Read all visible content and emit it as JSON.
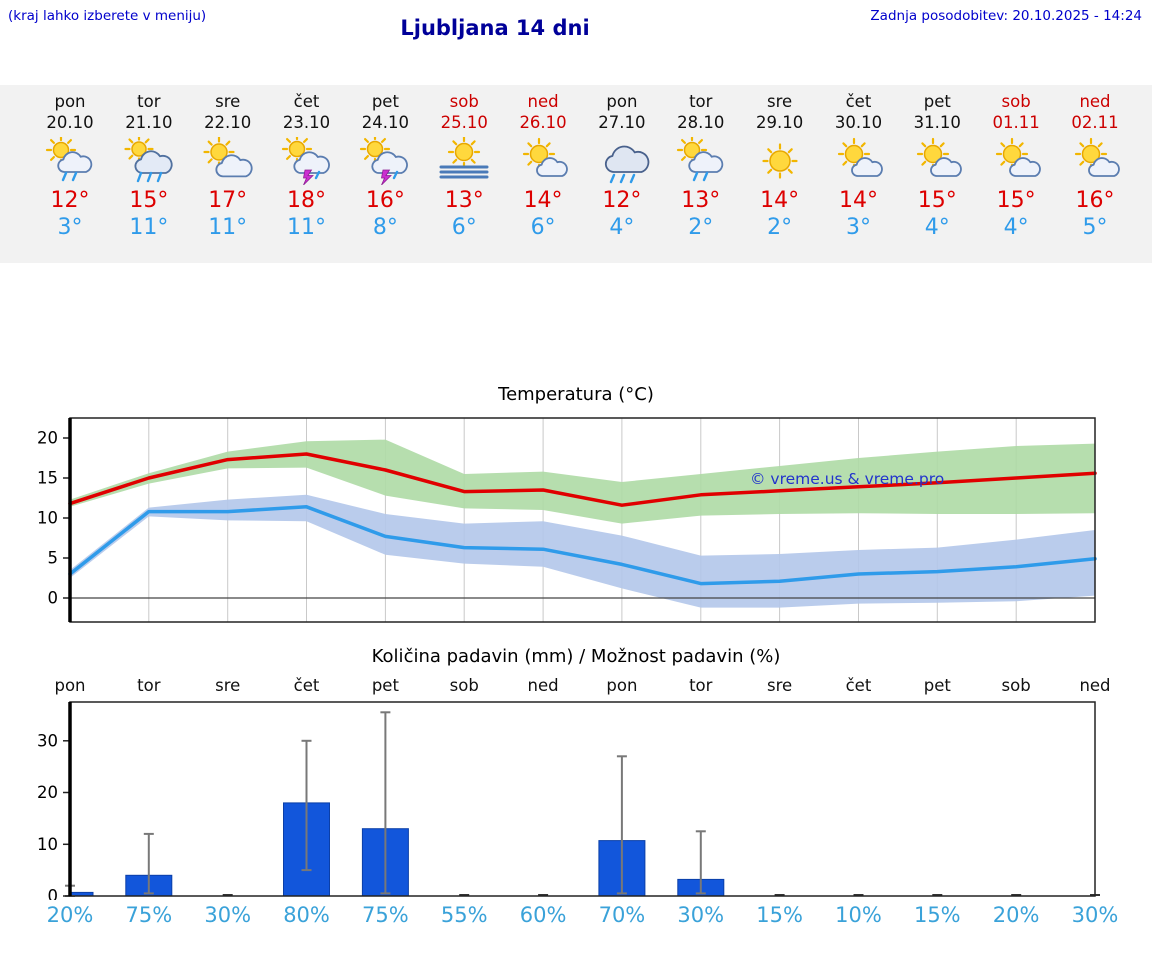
{
  "header": {
    "hint": "(kraj lahko izberete v meniju)",
    "title": "Ljubljana 14 dni",
    "updated": "Zadnja posodobitev: 20.10.2025 - 14:24"
  },
  "colors": {
    "accent_blue": "#0000cc",
    "title_blue": "#000099",
    "max_red": "#dd0000",
    "min_blue": "#2f9bea",
    "prob_blue": "#3aa2d9",
    "bar_blue": "#1256db",
    "band_green": "#aedaa5",
    "band_blue": "#b3c6ea",
    "strip_bg": "#f2f2f2"
  },
  "forecast_days": [
    {
      "day": "pon",
      "date": "20.10",
      "weekend": false,
      "icon": "sun-cloud-rain",
      "tmax": "12°",
      "tmin": "3°"
    },
    {
      "day": "tor",
      "date": "21.10",
      "weekend": false,
      "icon": "sun-cloud-rain-heavy",
      "tmax": "15°",
      "tmin": "11°"
    },
    {
      "day": "sre",
      "date": "22.10",
      "weekend": false,
      "icon": "sun-cloud",
      "tmax": "17°",
      "tmin": "11°"
    },
    {
      "day": "čet",
      "date": "23.10",
      "weekend": false,
      "icon": "sun-cloud-thunder",
      "tmax": "18°",
      "tmin": "11°"
    },
    {
      "day": "pet",
      "date": "24.10",
      "weekend": false,
      "icon": "sun-cloud-thunder",
      "tmax": "16°",
      "tmin": "8°"
    },
    {
      "day": "sob",
      "date": "25.10",
      "weekend": true,
      "icon": "sun-fog",
      "tmax": "13°",
      "tmin": "6°"
    },
    {
      "day": "ned",
      "date": "26.10",
      "weekend": true,
      "icon": "sun-cloud-small",
      "tmax": "14°",
      "tmin": "6°"
    },
    {
      "day": "pon",
      "date": "27.10",
      "weekend": false,
      "icon": "cloud-rain",
      "tmax": "12°",
      "tmin": "4°"
    },
    {
      "day": "tor",
      "date": "28.10",
      "weekend": false,
      "icon": "sun-cloud-rain",
      "tmax": "13°",
      "tmin": "2°"
    },
    {
      "day": "sre",
      "date": "29.10",
      "weekend": false,
      "icon": "sun",
      "tmax": "14°",
      "tmin": "2°"
    },
    {
      "day": "čet",
      "date": "30.10",
      "weekend": false,
      "icon": "sun-cloud-small",
      "tmax": "14°",
      "tmin": "3°"
    },
    {
      "day": "pet",
      "date": "31.10",
      "weekend": false,
      "icon": "sun-cloud-small",
      "tmax": "15°",
      "tmin": "4°"
    },
    {
      "day": "sob",
      "date": "01.11",
      "weekend": true,
      "icon": "sun-cloud-small",
      "tmax": "15°",
      "tmin": "4°"
    },
    {
      "day": "ned",
      "date": "02.11",
      "weekend": true,
      "icon": "sun-cloud-small",
      "tmax": "16°",
      "tmin": "5°"
    }
  ],
  "chart_data": [
    {
      "type": "line",
      "title": "Temperatura (°C)",
      "x_labels": [
        "pon 20.10",
        "tor 21.10",
        "sre 22.10",
        "čet 23.10",
        "pet 24.10",
        "sob 25.10",
        "ned 26.10",
        "pon 27.10",
        "tor 28.10",
        "sre 29.10",
        "čet 30.10",
        "pet 31.10",
        "sob 01.11",
        "ned 02.11"
      ],
      "ylim": [
        -3,
        22.5
      ],
      "yticks": [
        0,
        5,
        10,
        15,
        20
      ],
      "grid": "vertical-daily",
      "watermark": "© vreme.us & vreme.pro",
      "series": [
        {
          "name": "max-temperature",
          "color": "#e00000",
          "values": [
            11.8,
            15,
            17.3,
            18,
            16,
            13.3,
            13.5,
            11.6,
            12.9,
            13.4,
            13.9,
            14.4,
            15,
            15.6
          ],
          "band_hi": [
            12.3,
            15.6,
            18.3,
            19.6,
            19.8,
            15.5,
            15.8,
            14.5,
            15.5,
            16.5,
            17.5,
            18.3,
            19,
            19.3
          ],
          "band_lo": [
            11.4,
            14.3,
            16.2,
            16.3,
            12.8,
            11.2,
            11,
            9.3,
            10.3,
            10.5,
            10.6,
            10.5,
            10.5,
            10.6
          ],
          "band_color": "#aedaa5"
        },
        {
          "name": "min-temperature",
          "color": "#2f9bea",
          "values": [
            3,
            10.8,
            10.8,
            11.4,
            7.7,
            6.3,
            6.1,
            4.2,
            1.8,
            2.1,
            3,
            3.3,
            3.9,
            4.9
          ],
          "band_hi": [
            3.5,
            11.3,
            12.3,
            12.9,
            10.5,
            9.3,
            9.6,
            7.8,
            5.3,
            5.5,
            6,
            6.3,
            7.3,
            8.5
          ],
          "band_lo": [
            2.5,
            10.2,
            9.7,
            9.6,
            5.4,
            4.3,
            3.9,
            1.2,
            -1.2,
            -1.2,
            -0.7,
            -0.6,
            -0.4,
            0.3
          ],
          "band_color": "#b3c6ea"
        }
      ]
    },
    {
      "type": "bar",
      "title": "Količina padavin (mm) / Možnost padavin (%)",
      "categories": [
        "pon",
        "tor",
        "sre",
        "čet",
        "pet",
        "sob",
        "ned",
        "pon",
        "tor",
        "sre",
        "čet",
        "pet",
        "sob",
        "ned"
      ],
      "values": [
        0.7,
        4,
        0,
        18,
        13,
        0,
        0,
        10.7,
        3.2,
        0,
        0,
        0,
        0,
        0
      ],
      "whisker_hi": [
        2,
        12,
        0,
        30,
        35.5,
        0,
        0,
        27,
        12.5,
        0,
        0,
        0,
        0,
        0
      ],
      "whisker_lo": [
        0,
        0.5,
        0,
        5,
        0.5,
        0,
        0,
        0.5,
        0.5,
        0,
        0,
        0,
        0,
        0
      ],
      "probabilities": [
        "20%",
        "75%",
        "30%",
        "80%",
        "75%",
        "55%",
        "60%",
        "70%",
        "30%",
        "15%",
        "10%",
        "15%",
        "20%",
        "30%"
      ],
      "ylim": [
        0,
        37.5
      ],
      "yticks": [
        0,
        10,
        20,
        30
      ],
      "bar_color": "#1256db"
    }
  ]
}
